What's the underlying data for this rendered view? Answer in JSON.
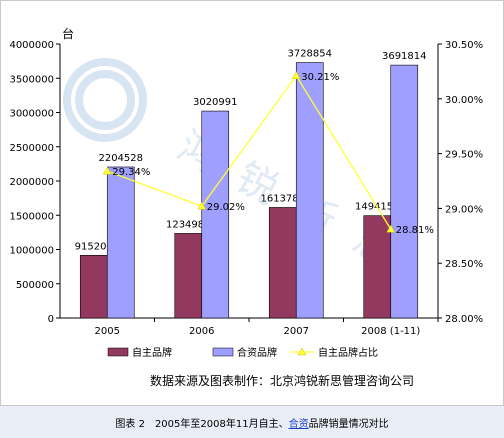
{
  "chart_data": {
    "type": "bar",
    "unit_label": "台",
    "categories": [
      "2005",
      "2006",
      "2007",
      "2008 (1-11)"
    ],
    "series": [
      {
        "name": "自主品牌",
        "type": "bar",
        "axis": "left",
        "color": "#93395f",
        "values": [
          915204,
          1234980,
          1613781,
          1494155
        ],
        "labels": [
          "915204",
          "1234980",
          "1613781",
          "1494155"
        ]
      },
      {
        "name": "合资品牌",
        "type": "bar",
        "axis": "left",
        "color": "#9f9fff",
        "values": [
          2204528,
          3020991,
          3728854,
          3691814
        ],
        "labels": [
          "2204528",
          "3020991",
          "3728854",
          "3691814"
        ]
      },
      {
        "name": "自主品牌占比",
        "type": "line",
        "axis": "right",
        "color": "#ffff33",
        "values": [
          29.34,
          29.02,
          30.21,
          28.81
        ],
        "labels": [
          "29.34%",
          "29.02%",
          "30.21%",
          "28.81%"
        ]
      }
    ],
    "y_left": {
      "min": 0,
      "max": 4000000,
      "ticks": [
        "0",
        "500000",
        "1000000",
        "1500000",
        "2000000",
        "2500000",
        "3000000",
        "3500000",
        "4000000"
      ]
    },
    "y_right": {
      "min": 28.0,
      "max": 30.5,
      "ticks": [
        "28.00%",
        "28.50%",
        "29.00%",
        "29.50%",
        "30.00%",
        "30.50%"
      ]
    },
    "grid": false,
    "legend_position": "bottom"
  },
  "source_text": "数据来源及图表制作：北京鸿锐新思管理咨询公司",
  "caption": {
    "prefix": "图表 2　2005年至2008年11月自主、",
    "link": "合资",
    "suffix": "品牌销量情况对比"
  },
  "watermark_text": "鸿锐新思"
}
